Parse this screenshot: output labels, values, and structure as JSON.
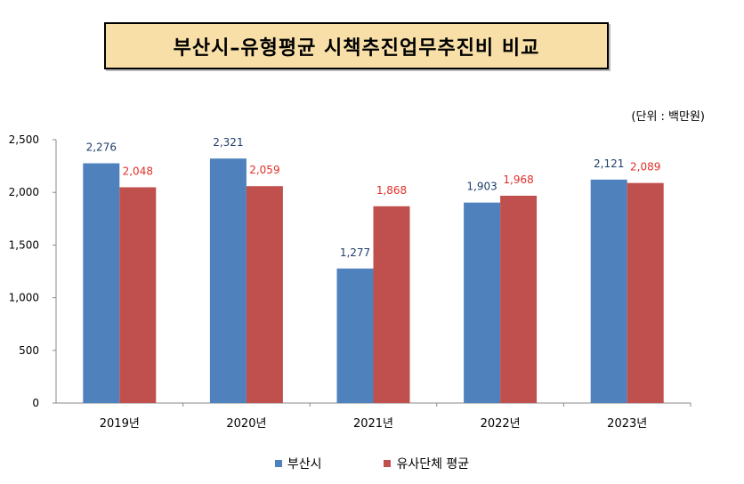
{
  "title": "부산시–유형평균 시책추진업무추진비 비교",
  "unit_label": "(단위 : 백만원)",
  "colors": {
    "busan": "#4f81bd",
    "avg": "#c0504d",
    "avg_label": "#e0302a",
    "busan_label": "#1f3d6a"
  },
  "chart_data": {
    "type": "bar",
    "categories": [
      "2019년",
      "2020년",
      "2021년",
      "2022년",
      "2023년"
    ],
    "series": [
      {
        "name": "부산시",
        "values": [
          2276,
          2321,
          1277,
          1903,
          2121
        ]
      },
      {
        "name": "유사단체 평균",
        "values": [
          2048,
          2059,
          1868,
          1968,
          2089
        ]
      }
    ],
    "value_labels": [
      [
        "2,276",
        "2,321",
        "1,277",
        "1,903",
        "2,121"
      ],
      [
        "2,048",
        "2,059",
        "1,868",
        "1,968",
        "2,089"
      ]
    ],
    "y_ticks": [
      "0",
      "500",
      "1,000",
      "1,500",
      "2,000",
      "2,500"
    ],
    "ylim": [
      0,
      2500
    ],
    "legend_position": "bottom",
    "grid": false
  }
}
